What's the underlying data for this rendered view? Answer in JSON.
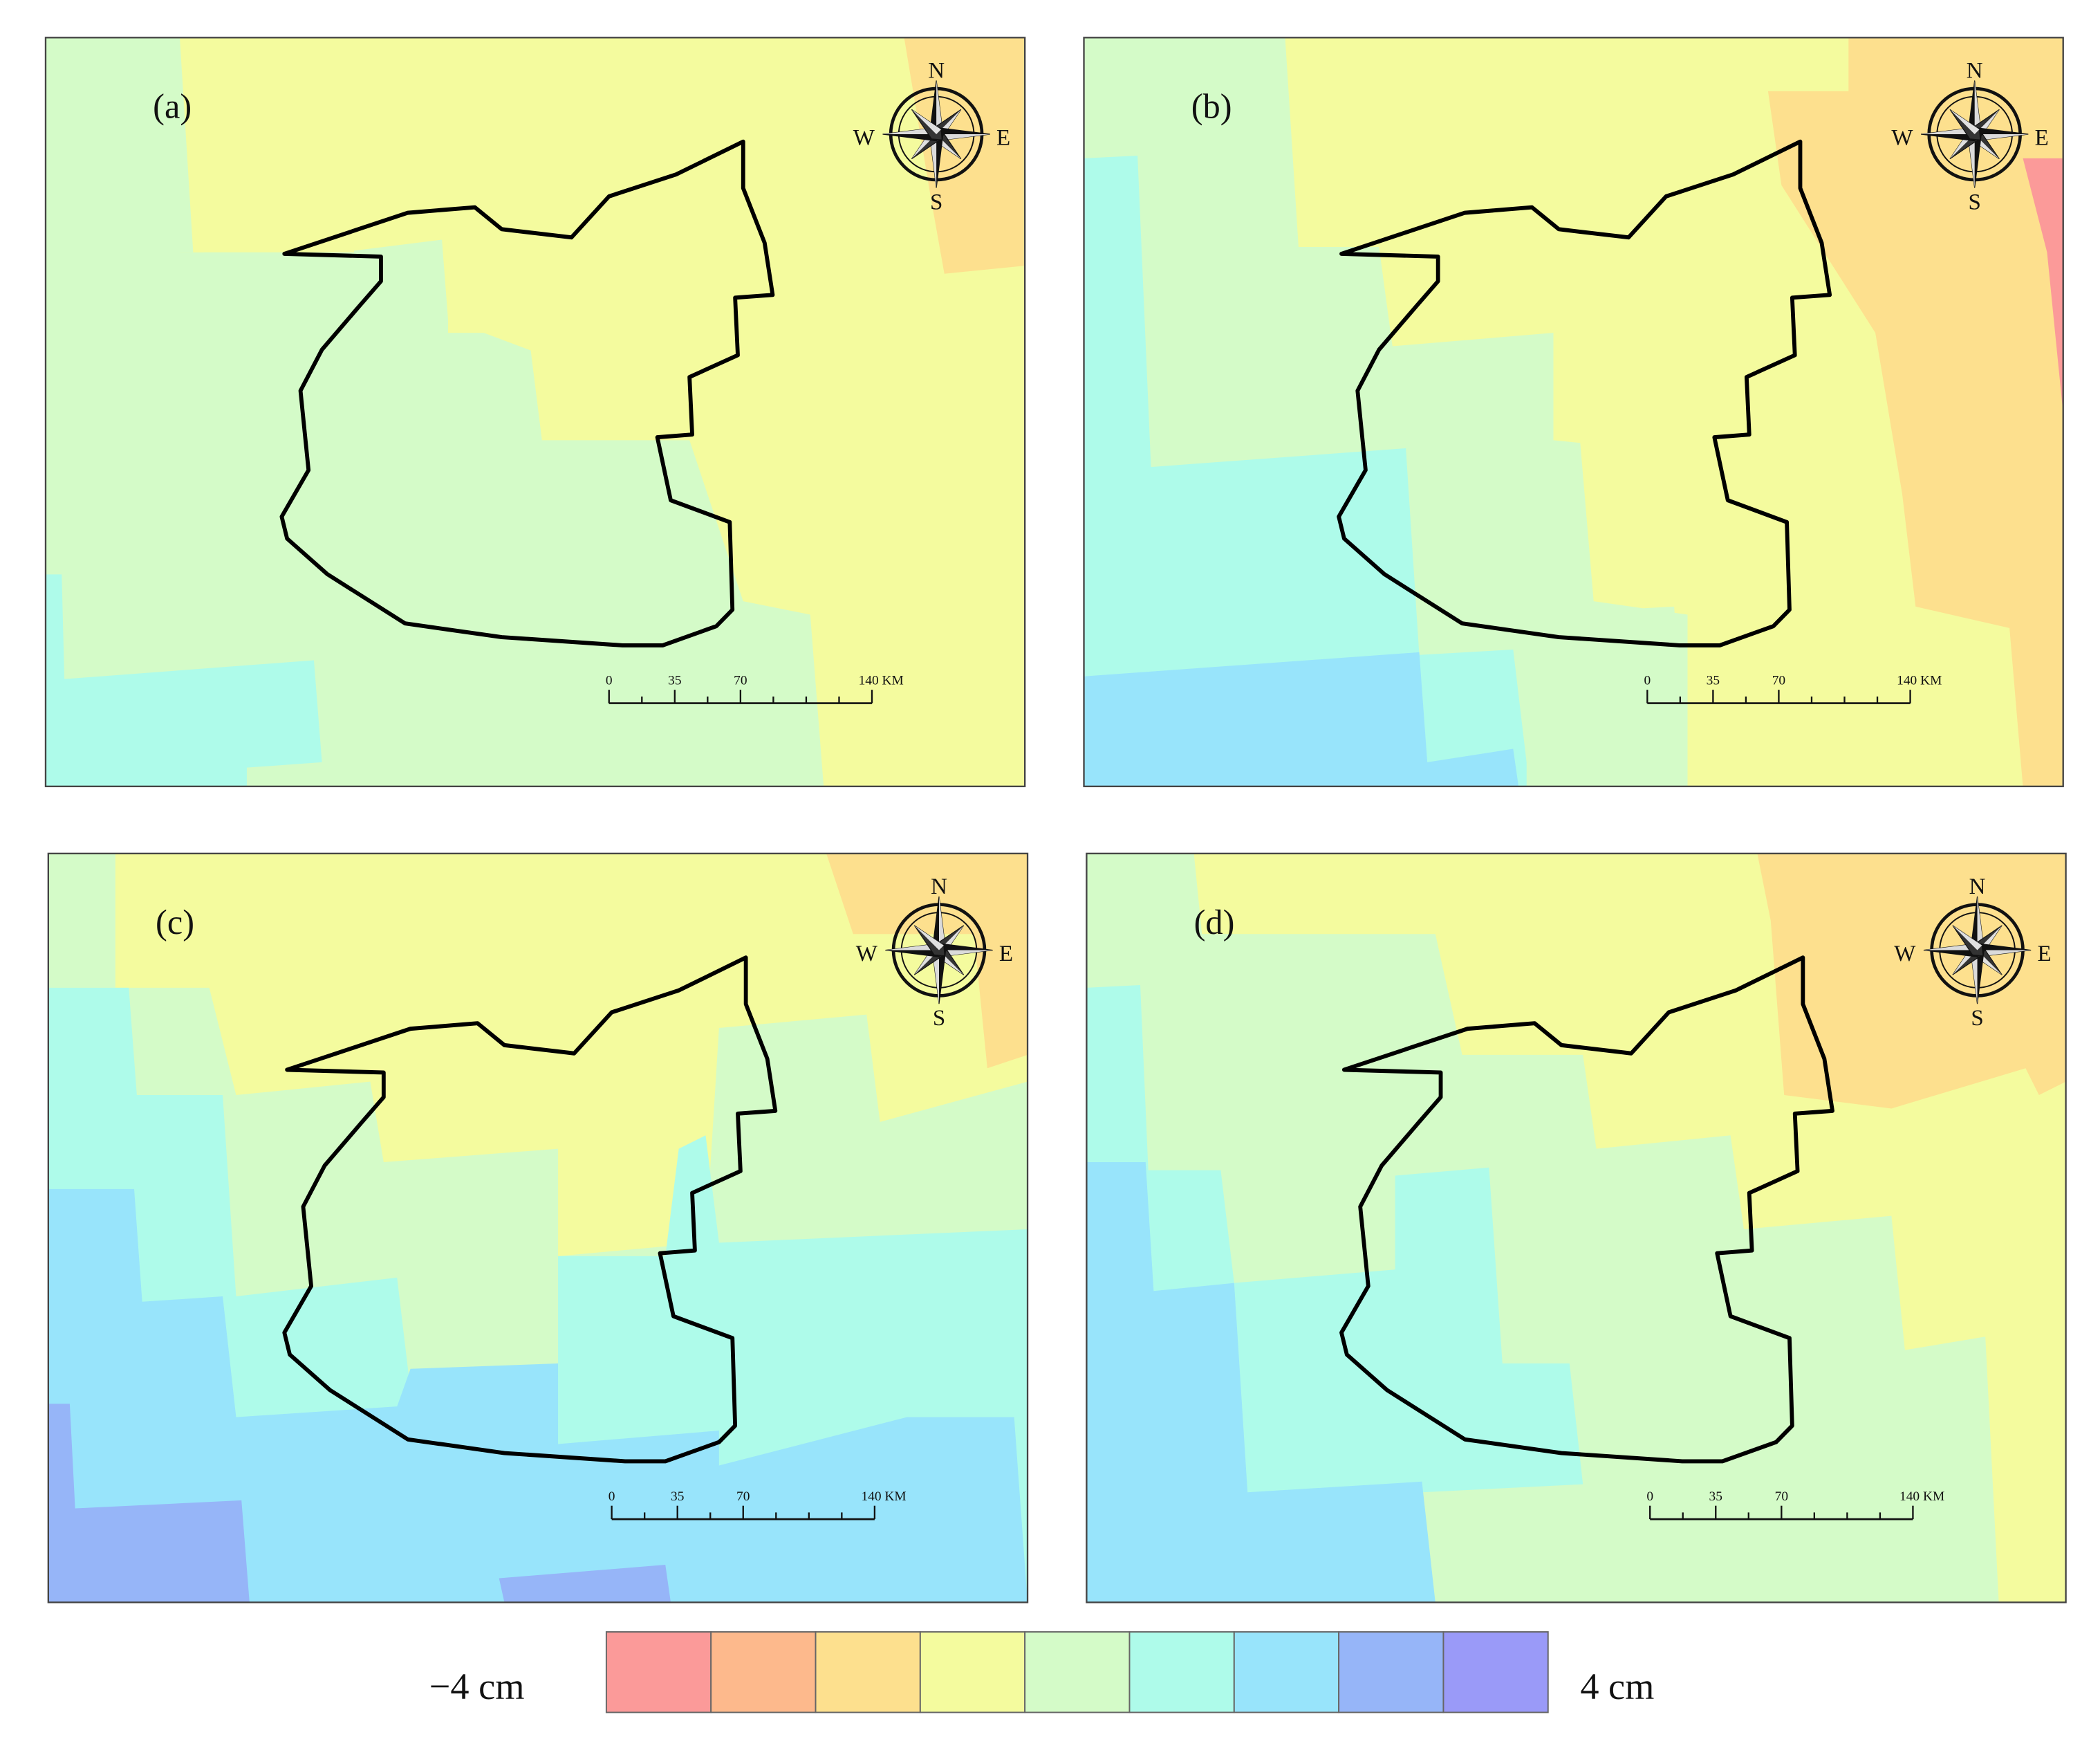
{
  "panels": [
    {
      "id": "a",
      "label": "(a)"
    },
    {
      "id": "b",
      "label": "(b)"
    },
    {
      "id": "c",
      "label": "(c)"
    },
    {
      "id": "d",
      "label": "(d)"
    }
  ],
  "compass": {
    "n": "N",
    "s": "S",
    "e": "E",
    "w": "W"
  },
  "scale_bar": {
    "ticks": [
      "0",
      "35",
      "70",
      "140 KM"
    ]
  },
  "legend": {
    "min_label": "−4 cm",
    "max_label": "4 cm",
    "colors": [
      "#fb9a99",
      "#fdb98c",
      "#fde08e",
      "#f4fb9e",
      "#d4fbc8",
      "#aefbea",
      "#98e4fb",
      "#96b5f8",
      "#9a9af8"
    ]
  }
}
